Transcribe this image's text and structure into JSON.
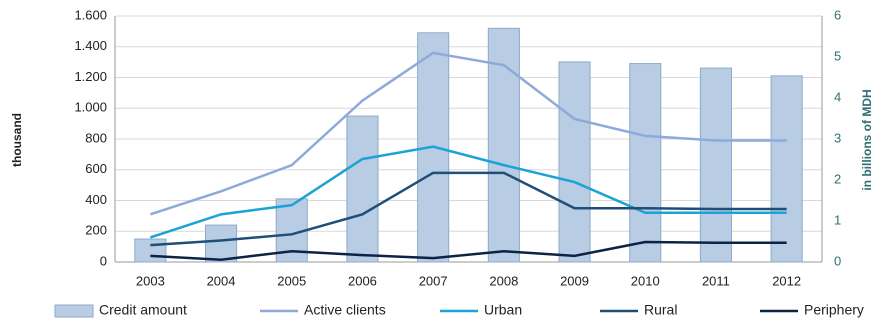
{
  "chart_data": {
    "type": "combo",
    "y_label": "thousand",
    "y2_label": "in billions of MDH",
    "categories": [
      "2003",
      "2004",
      "2005",
      "2006",
      "2007",
      "2008",
      "2009",
      "2010",
      "2011",
      "2012"
    ],
    "ylim": [
      0,
      1600
    ],
    "yticks": [
      0,
      200,
      400,
      600,
      800,
      {
        "value": 1000,
        "label": "1.000"
      },
      {
        "value": 1200,
        "label": "1.200"
      },
      {
        "value": 1400,
        "label": "1.400"
      },
      {
        "value": 1600,
        "label": "1.600"
      }
    ],
    "y2lim": [
      0,
      6
    ],
    "y2ticks": [
      0,
      1,
      2,
      3,
      4,
      5,
      6
    ],
    "grid": true,
    "legend": "bottom",
    "series": [
      {
        "name": "Credit amount",
        "type": "bar",
        "axis": "y2",
        "color": "#b8cce4",
        "values": [
          0.56,
          0.9,
          1.54,
          3.56,
          5.59,
          5.7,
          4.88,
          4.84,
          4.73,
          4.54
        ]
      },
      {
        "name": "Active clients",
        "type": "line",
        "color": "#8eaadb",
        "values": [
          310,
          460,
          630,
          1050,
          1360,
          1280,
          930,
          820,
          790,
          790
        ]
      },
      {
        "name": "Urban",
        "type": "line",
        "color": "#1aa3d4",
        "values": [
          160,
          310,
          370,
          670,
          750,
          630,
          520,
          320,
          320,
          320
        ]
      },
      {
        "name": "Rural",
        "type": "line",
        "color": "#1f4e79",
        "values": [
          110,
          140,
          180,
          310,
          580,
          580,
          350,
          350,
          345,
          345
        ]
      },
      {
        "name": "Periphery",
        "type": "line",
        "color": "#0d2346",
        "values": [
          40,
          15,
          70,
          45,
          25,
          70,
          40,
          130,
          125,
          125
        ]
      }
    ]
  }
}
